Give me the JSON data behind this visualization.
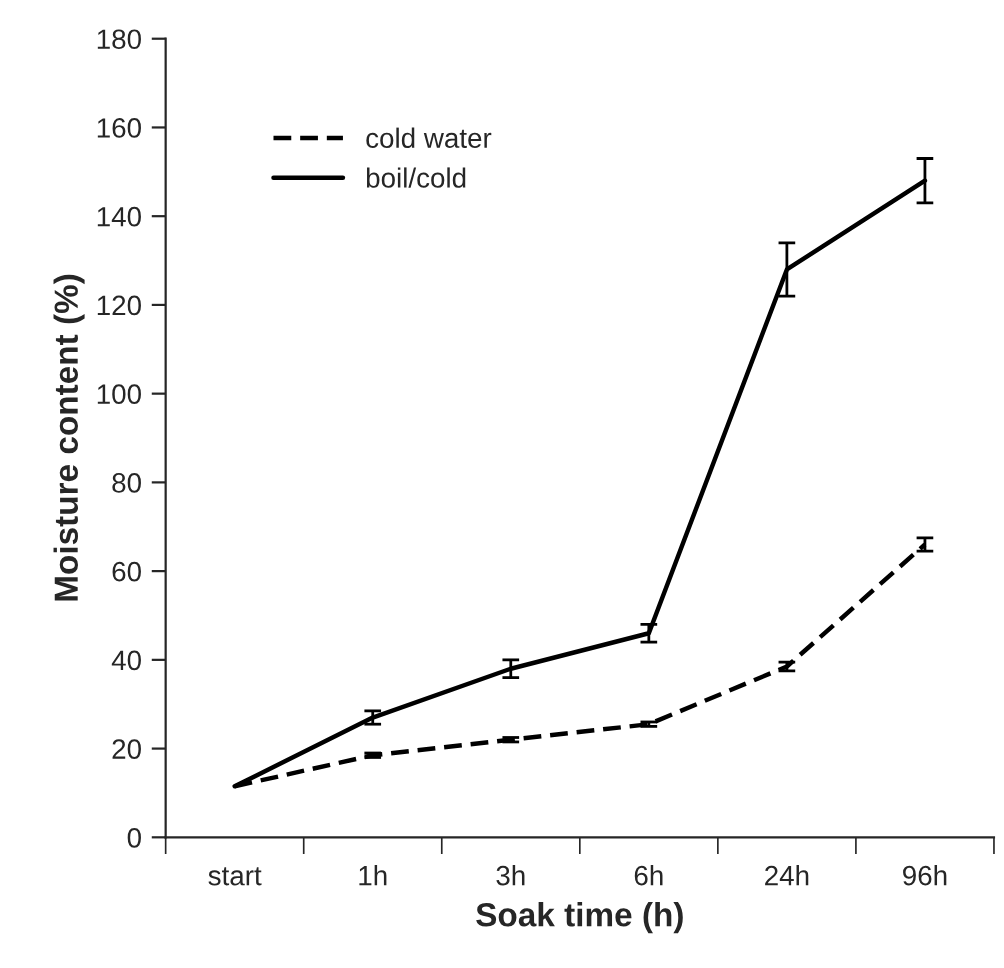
{
  "chart_data": {
    "type": "line",
    "xlabel": "Soak time (h)",
    "ylabel": "Moisture content (%)",
    "categories": [
      "start",
      "1h",
      "3h",
      "6h",
      "24h",
      "96h"
    ],
    "series": [
      {
        "name": "cold water",
        "color": "#000000",
        "line_style": "dashed",
        "values": [
          11.5,
          18.5,
          22,
          25.5,
          38.5,
          66
        ],
        "errors": [
          null,
          0.5,
          0.5,
          0.5,
          1,
          1.5
        ]
      },
      {
        "name": "boil/cold",
        "color": "#000000",
        "line_style": "solid",
        "values": [
          11.5,
          27,
          38,
          46,
          128,
          148
        ],
        "errors": [
          null,
          1.5,
          2,
          2,
          6,
          5
        ]
      }
    ],
    "ylim": [
      0,
      180
    ],
    "yticks": [
      0,
      20,
      40,
      60,
      80,
      100,
      120,
      140,
      160,
      180
    ],
    "grid": false,
    "legend": "top left",
    "marker": "none"
  }
}
